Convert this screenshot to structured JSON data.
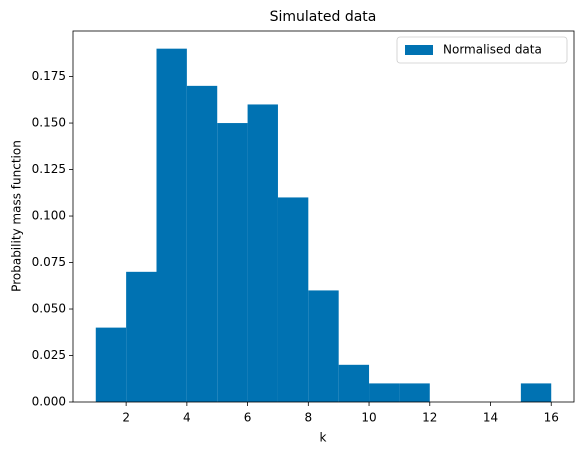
{
  "chart_data": {
    "type": "histogram",
    "title": "Simulated data",
    "xlabel": "k",
    "ylabel": "Probability mass function",
    "bins": [
      1,
      2,
      3,
      4,
      5,
      6,
      7,
      8,
      9,
      10,
      11,
      12,
      13,
      14,
      15,
      16
    ],
    "values": [
      0.04,
      0.07,
      0.19,
      0.17,
      0.15,
      0.16,
      0.11,
      0.06,
      0.02,
      0.01,
      0.01,
      0,
      0,
      0,
      0.01
    ],
    "series_name": "Normalised data",
    "color": "#0072b2",
    "xlim": [
      0.25,
      16.75
    ],
    "ylim": [
      0,
      0.1995
    ],
    "xticks": [
      2,
      4,
      6,
      8,
      10,
      12,
      14,
      16
    ],
    "yticks": [
      {
        "value": 0,
        "label": "0.000"
      },
      {
        "value": 0.025,
        "label": "0.025"
      },
      {
        "value": 0.05,
        "label": "0.050"
      },
      {
        "value": 0.075,
        "label": "0.075"
      },
      {
        "value": 0.1,
        "label": "0.100"
      },
      {
        "value": 0.125,
        "label": "0.125"
      },
      {
        "value": 0.15,
        "label": "0.150"
      },
      {
        "value": 0.175,
        "label": "0.175"
      }
    ],
    "legend": "upper right",
    "grid": false
  }
}
